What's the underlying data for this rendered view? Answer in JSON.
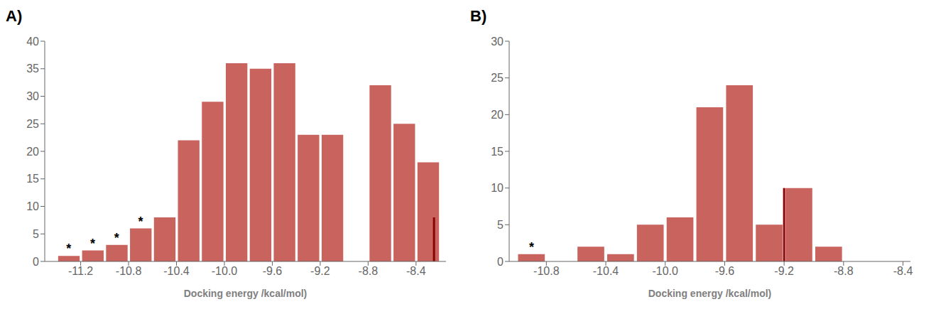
{
  "chart_data": [
    {
      "type": "histogram",
      "title": "A)",
      "x_label": "Docking energy /kcal/mol)",
      "bins": [
        -11.4,
        -11.2,
        -11.0,
        -10.8,
        -10.6,
        -10.4,
        -10.2,
        -10.0,
        -9.8,
        -9.6,
        -9.4,
        -9.2,
        -9.0,
        -8.8,
        -8.6,
        -8.4,
        -8.2
      ],
      "counts": [
        1,
        2,
        3,
        6,
        8,
        22,
        29,
        36,
        35,
        36,
        23,
        23,
        0,
        32,
        25,
        18
      ],
      "color": "#c8635d",
      "annotations": [
        {
          "text": "*",
          "x": -11.3,
          "y": 1
        },
        {
          "text": "*",
          "x": -11.1,
          "y": 2
        },
        {
          "text": "*",
          "x": -10.9,
          "y": 3
        },
        {
          "text": "*",
          "x": -10.7,
          "y": 6
        }
      ],
      "vline": {
        "x": -8.25,
        "y": [
          0,
          8
        ],
        "color": "#8b0000"
      },
      "xlim": [
        -11.5,
        -8.15
      ],
      "ylim": [
        0,
        40
      ],
      "xticks": [
        -11.2,
        -10.8,
        -10.4,
        {
          "value": -10.0,
          "label": "-10.0"
        },
        -9.6,
        -9.2,
        -8.8,
        -8.4
      ],
      "yticks": [
        0,
        5,
        10,
        15,
        20,
        25,
        30,
        35,
        40
      ],
      "grid": false
    },
    {
      "type": "histogram",
      "title": "B)",
      "x_label": "Docking energy /kcal/mol)",
      "bins": [
        -11.0,
        -10.8,
        -10.6,
        -10.4,
        -10.2,
        -10.0,
        -9.8,
        -9.6,
        -9.4,
        -9.2,
        -9.0,
        -8.8,
        -8.6
      ],
      "counts": [
        1,
        0,
        2,
        1,
        5,
        6,
        21,
        24,
        5,
        10,
        2,
        0
      ],
      "color": "#c8635d",
      "annotations": [
        {
          "text": "*",
          "x": -10.9,
          "y": 1
        }
      ],
      "vline": {
        "x": -9.2,
        "y": [
          0,
          10
        ],
        "color": "#8b0000"
      },
      "xlim": [
        -11.05,
        -8.35
      ],
      "ylim": [
        0,
        30
      ],
      "xticks": [
        -10.8,
        -10.4,
        {
          "value": -10.0,
          "label": "-10.0"
        },
        -9.6,
        -9.2,
        -8.8,
        -8.4
      ],
      "yticks": [
        0,
        5,
        10,
        15,
        20,
        25,
        30
      ],
      "grid": false
    }
  ]
}
